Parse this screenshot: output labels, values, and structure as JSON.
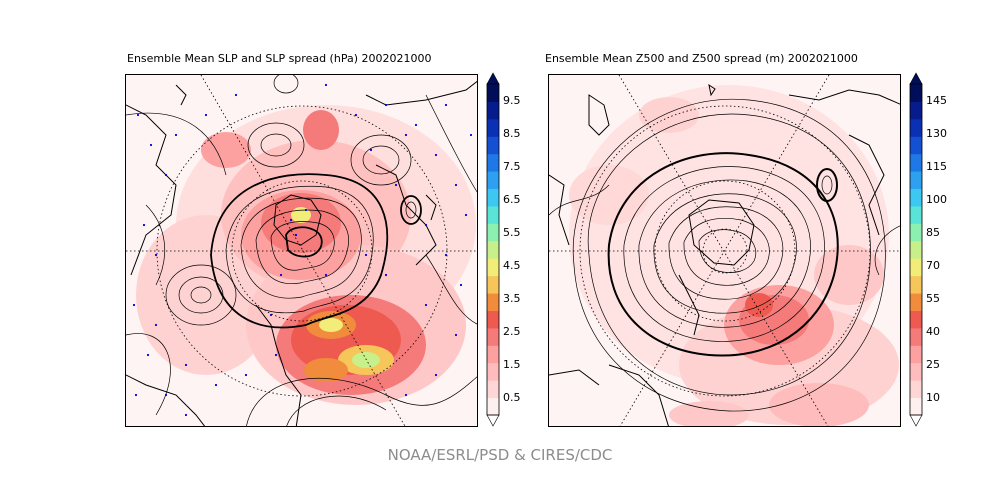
{
  "credit": "NOAA/ESRL/PSD & CIRES/CDC",
  "panels": [
    {
      "title": "Ensemble Mean SLP and SLP spread (hPa) 2002021000",
      "variable": "SLP",
      "units": "hPa",
      "date": "2002021000",
      "colorbar": {
        "ticks": [
          "0.5",
          "1.5",
          "2.5",
          "3.5",
          "4.5",
          "5.5",
          "6.5",
          "7.5",
          "8.5",
          "9.5"
        ],
        "levels": [
          0.5,
          1.0,
          1.5,
          2.0,
          2.5,
          3.0,
          3.5,
          4.0,
          4.5,
          5.0,
          5.5,
          6.0,
          6.5,
          7.0,
          7.5,
          8.0,
          8.5,
          9.0,
          9.5
        ],
        "extend": "both"
      }
    },
    {
      "title": "Ensemble Mean Z500 and Z500 spread (m) 2002021000",
      "variable": "Z500",
      "units": "m",
      "date": "2002021000",
      "colorbar": {
        "ticks": [
          "10",
          "25",
          "40",
          "55",
          "70",
          "85",
          "100",
          "115",
          "130",
          "145"
        ],
        "levels": [
          10,
          17.5,
          25,
          32.5,
          40,
          47.5,
          55,
          62.5,
          70,
          77.5,
          85,
          92.5,
          100,
          107.5,
          115,
          122.5,
          130,
          137.5,
          145
        ],
        "extend": "both"
      }
    }
  ],
  "colors": {
    "spread_scale": [
      "#fff0f0",
      "#ffd6d6",
      "#ffbcbc",
      "#fca0a0",
      "#f57a7a",
      "#ef5a50",
      "#f08c3c",
      "#f7c65a",
      "#f2ec78",
      "#c8f08a",
      "#8cf0b0",
      "#5ae4d8",
      "#3cc8f0",
      "#2ea0f0",
      "#1e78e6",
      "#1450d2",
      "#0a30b4",
      "#061c8c",
      "#000e5a"
    ],
    "contour": "#000000",
    "station_dots": "#0000dd",
    "credit_text": "#8c8c8c"
  }
}
